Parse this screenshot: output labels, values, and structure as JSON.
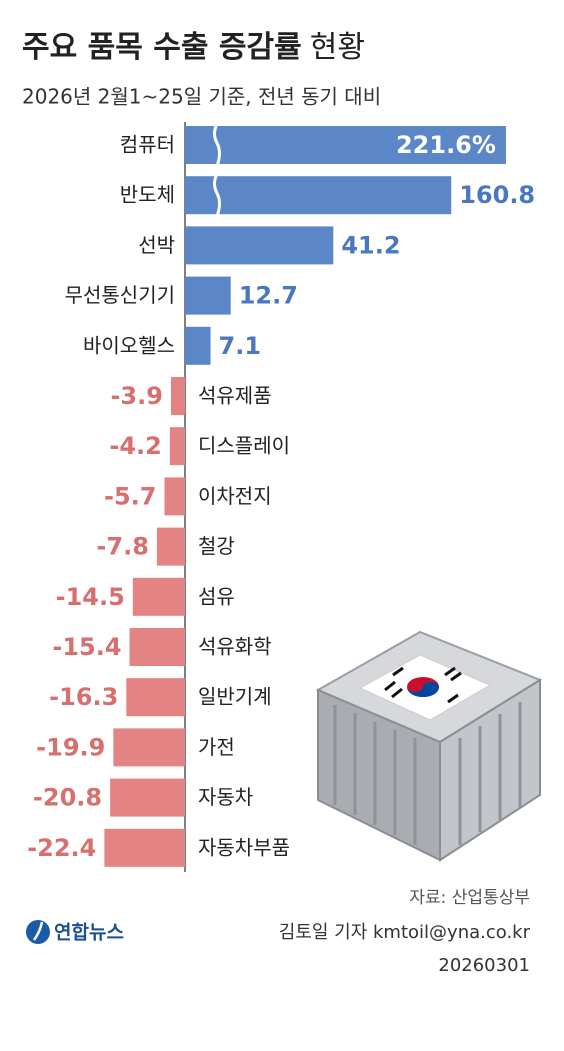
{
  "chart_data": {
    "type": "bar",
    "orientation": "horizontal",
    "title": "주요 품목 수출 증감률",
    "title_tail": "현황",
    "subtitle": "2026년 2월1~25일 기준, 전년 동기 대비",
    "categories": [
      "컴퓨터",
      "반도체",
      "선박",
      "무선통신기기",
      "바이오헬스",
      "석유제품",
      "디스플레이",
      "이차전지",
      "철강",
      "섬유",
      "석유화학",
      "일반기계",
      "가전",
      "자동차",
      "자동차부품"
    ],
    "values": [
      221.6,
      160.8,
      41.2,
      12.7,
      7.1,
      -3.9,
      -4.2,
      -5.7,
      -7.8,
      -14.5,
      -15.4,
      -16.3,
      -19.9,
      -20.8,
      -22.4
    ],
    "value_labels": [
      "221.6%",
      "160.8",
      "41.2",
      "12.7",
      "7.1",
      "-3.9",
      "-4.2",
      "-5.7",
      "-7.8",
      "-14.5",
      "-15.4",
      "-16.3",
      "-19.9",
      "-20.8",
      "-22.4"
    ],
    "positive_color": "#5b86c8",
    "negative_color": "#e48383",
    "axis_break": true
  },
  "footer": {
    "source": "자료: 산업통상부",
    "credit": "김토일 기자 kmtoil@yna.co.kr",
    "date": "20260301",
    "logo": "연합뉴스"
  }
}
